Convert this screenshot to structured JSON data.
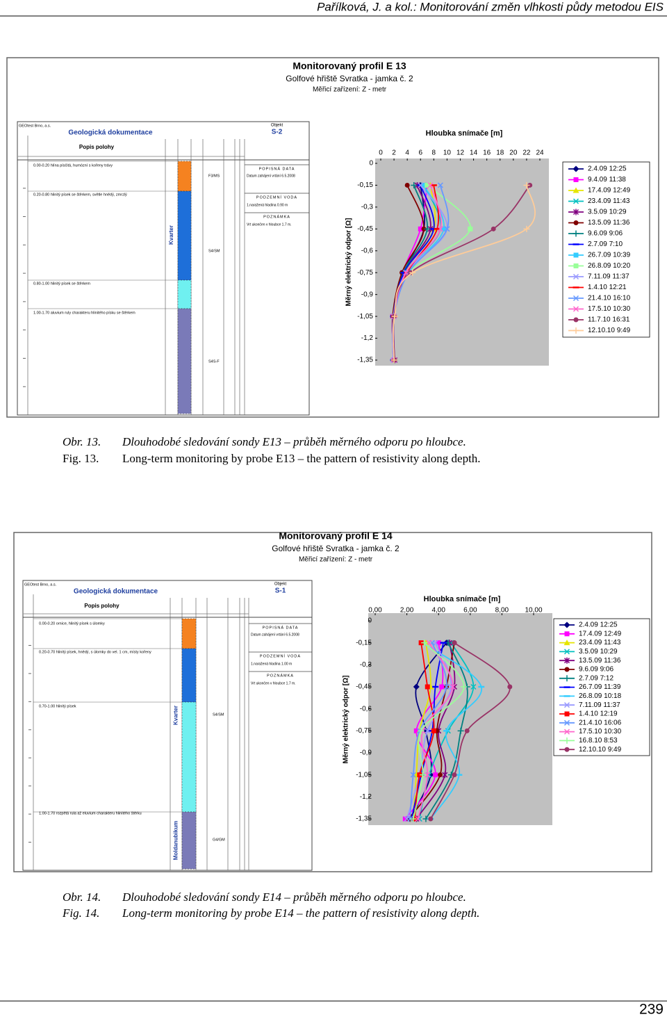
{
  "header": "Pařílková, J. a kol.: Monitorování změn vlhkosti půdy metodou EIS",
  "page_number": "239",
  "figures": [
    {
      "title": "Monitorovaný profil E 13",
      "subtitle": "Golfové hřiště Svratka - jamka č. 2",
      "device": "Měřicí zařízení: Z - metr",
      "log": {
        "company": "GEOtest Brno, a.s.",
        "heading": "Geologická dokumentace",
        "column": "Popis polohy",
        "object_label": "Objekt",
        "object": "S-2",
        "panel": [
          "POPISNÁ DATA",
          "Datum zahájení vrtání  6.5.2008",
          "PODZEMNÍ VODA",
          "1.naražená hladina  0.90 m",
          "POZNÁMKA",
          "Vrt ukončen v hloubce 1.7 m."
        ],
        "layers": [
          "0.00-0.20 hlína písčitá, humózní s kořeny trávy",
          "0.20-0.80 hlinitý písek se štěrkem, světle hnědý, zmrzlý",
          "0.80-1.00 hlinitý písek se štěrkem",
          "1.00-1.70 aluvium ruly charakteru hlinitého písku se štěrkem"
        ],
        "symbols": [
          "F3/MS",
          "S4/SM",
          "S4S-F"
        ],
        "strata": [
          "Kvarter"
        ]
      },
      "caption": [
        {
          "label": "Obr. 13.",
          "text": "Dlouhodobé sledování sondy E13 – průběh měrného odporu po hloubce."
        },
        {
          "label": "Fig. 13.",
          "text": "Long-term monitoring by probe E13 – the pattern of resistivity along depth."
        }
      ]
    },
    {
      "title": "Monitorovaný profil E 14",
      "subtitle": "Golfové hřiště Svratka - jamka č. 2",
      "device": "Měřicí zařízení: Z - metr",
      "log": {
        "company": "GEOtest Brno, a.s.",
        "heading": "Geologická dokumentace",
        "column": "Popis polohy",
        "object_label": "Objekt",
        "object": "S-1",
        "panel": [
          "POPISNÁ DATA",
          "Datum zahájení vrtání  6.5.2008",
          "PODZEMNÍ VODA",
          "1.naražená hladina  1.00 m",
          "POZNÁMKA",
          "Vrt ukončen v hloubce 1.7 m."
        ],
        "layers": [
          "0.00-0.20 ornice, hlinitý písek s úlomky",
          "0.20-0.70 hlinitý písek, hnědý, s úlomky do vel. 1 cm, místy kořeny",
          "0.70-1.00 hlinitý písek",
          "1.00-1.70 rozpětá rula až eluvium charakteru hlinitého štěrku"
        ],
        "symbols": [
          "S4/SM",
          "G4/GM"
        ],
        "strata": [
          "Kvarter",
          "Moldanubikum"
        ]
      },
      "caption": [
        {
          "label": "Obr. 14.",
          "text": "Dlouhodobé sledování sondy E14 – průběh měrného odporu po hloubce."
        },
        {
          "label": "Fig. 14.",
          "text": "Long-term monitoring by probe E14 – the pattern of resistivity along depth."
        }
      ]
    }
  ],
  "chart_data": [
    {
      "type": "line",
      "title": "Hloubka snímače [m]",
      "y_label": "Měrný elektrický odpor [Ω]",
      "depths": [
        -0.15,
        -0.45,
        -0.75,
        -1.05,
        -1.35
      ],
      "xlim": [
        0,
        24
      ],
      "xticks": [
        0,
        2,
        4,
        6,
        8,
        10,
        12,
        14,
        16,
        18,
        20,
        22,
        24
      ],
      "ylim": [
        -1.35,
        0
      ],
      "yticks": [
        0,
        {
          "value": -0.15,
          "label": "-0,15"
        },
        {
          "value": -0.3,
          "label": "-0,3"
        },
        {
          "value": -0.45,
          "label": "-0,45"
        },
        {
          "value": -0.6,
          "label": "-0,6"
        },
        {
          "value": -0.75,
          "label": "-0,75"
        },
        {
          "value": -0.9,
          "label": "-0,9"
        },
        {
          "value": -1.05,
          "label": "-1,05"
        },
        {
          "value": -1.2,
          "label": "-1,2"
        },
        {
          "value": -1.35,
          "label": "-1,35"
        }
      ],
      "series": [
        {
          "name": "2.4.09 12:25",
          "color": "#000080",
          "marker": "diamond",
          "values": [
            6,
            6.5,
            3.5,
            2,
            2
          ]
        },
        {
          "name": "9.4.09 11:38",
          "color": "#ff00ff",
          "marker": "square",
          "values": [
            7,
            6,
            3.3,
            1.8,
            2
          ]
        },
        {
          "name": "17.4.09 12:49",
          "color": "#e6e600",
          "marker": "triangle",
          "values": [
            7.5,
            8,
            3.6,
            1.9,
            2
          ]
        },
        {
          "name": "23.4.09 11:43",
          "color": "#00c0c0",
          "marker": "x",
          "values": [
            6.5,
            9,
            3.8,
            2,
            2
          ]
        },
        {
          "name": "3.5.09 10:29",
          "color": "#800080",
          "marker": "star",
          "values": [
            5.5,
            7.5,
            3.5,
            2,
            2.1
          ]
        },
        {
          "name": "13.5.09 11:36",
          "color": "#800000",
          "marker": "circle",
          "values": [
            4,
            6.5,
            3.2,
            1.8,
            2
          ]
        },
        {
          "name": "9.6.09 9:06",
          "color": "#008080",
          "marker": "plus",
          "values": [
            5,
            7,
            3.4,
            1.9,
            2
          ]
        },
        {
          "name": "2.7.09 7:10",
          "color": "#0000ff",
          "marker": "dash",
          "values": [
            6,
            8,
            3.5,
            1.9,
            1.9
          ]
        },
        {
          "name": "26.7.09 10:39",
          "color": "#33ccff",
          "marker": "square",
          "values": [
            6.5,
            9.5,
            4,
            2,
            2
          ]
        },
        {
          "name": "26.8.09 10:20",
          "color": "#99ff99",
          "marker": "square",
          "values": [
            7,
            13.5,
            4.2,
            2,
            2
          ]
        },
        {
          "name": "7.11.09 11:37",
          "color": "#9999ff",
          "marker": "x",
          "values": [
            6,
            10,
            3.8,
            1.9,
            1.9
          ]
        },
        {
          "name": "1.4.10 12:21",
          "color": "#ff0000",
          "marker": "dash",
          "values": [
            8,
            8.5,
            4,
            2,
            2
          ]
        },
        {
          "name": "21.4.10 16:10",
          "color": "#6699ff",
          "marker": "x",
          "values": [
            9,
            10,
            4.2,
            2,
            2
          ]
        },
        {
          "name": "17.5.10 10:30",
          "color": "#ff66cc",
          "marker": "x",
          "values": [
            7.5,
            9,
            3.8,
            2,
            2
          ]
        },
        {
          "name": "11.7.10 16:31",
          "color": "#993366",
          "marker": "circle",
          "values": [
            22.5,
            17,
            4.5,
            2,
            2.1
          ]
        },
        {
          "name": "12.10.10 9:49",
          "color": "#ffcc99",
          "marker": "plus",
          "values": [
            22,
            22,
            4.8,
            2.1,
            2
          ]
        }
      ]
    },
    {
      "type": "line",
      "title": "Hloubka snímače [m]",
      "y_label": "Měrný elektrický odpor [Ω]",
      "depths": [
        -0.15,
        -0.45,
        -0.75,
        -1.05,
        -1.35
      ],
      "xlim": [
        0,
        10
      ],
      "xticks": [
        {
          "value": 0,
          "label": "0,00"
        },
        {
          "value": 2,
          "label": "2,00"
        },
        {
          "value": 4,
          "label": "4,00"
        },
        {
          "value": 6,
          "label": "6,00"
        },
        {
          "value": 8,
          "label": "8,00"
        },
        {
          "value": 10,
          "label": "10,00"
        }
      ],
      "ylim": [
        -1.35,
        0
      ],
      "yticks": [
        0,
        {
          "value": -0.15,
          "label": "-0,15"
        },
        {
          "value": -0.3,
          "label": "-0,3"
        },
        {
          "value": -0.45,
          "label": "-0,45"
        },
        {
          "value": -0.6,
          "label": "-0,6"
        },
        {
          "value": -0.75,
          "label": "-0,75"
        },
        {
          "value": -0.9,
          "label": "-0,9"
        },
        {
          "value": -1.05,
          "label": "-1,05"
        },
        {
          "value": -1.2,
          "label": "-1,2"
        },
        {
          "value": -1.35,
          "label": "-1,35"
        }
      ],
      "series": [
        {
          "name": "2.4.09 12:25",
          "color": "#000080",
          "marker": "diamond",
          "values": [
            4.5,
            2.6,
            3.2,
            3.5,
            2.2
          ]
        },
        {
          "name": "17.4.09 12:49",
          "color": "#ff00ff",
          "marker": "square",
          "values": [
            4,
            4.2,
            2.6,
            3.8,
            1.9
          ]
        },
        {
          "name": "23.4.09 11:43",
          "color": "#e6e600",
          "marker": "triangle",
          "values": [
            3.2,
            3.5,
            2.8,
            2.6,
            2.4
          ]
        },
        {
          "name": "3.5.09 10:29",
          "color": "#00c0c0",
          "marker": "x",
          "values": [
            4.8,
            6.2,
            4.6,
            3.4,
            2.8
          ]
        },
        {
          "name": "13.5.09 11:36",
          "color": "#800080",
          "marker": "star",
          "values": [
            4.7,
            5,
            4,
            4.4,
            2.6
          ]
        },
        {
          "name": "9.6.09 9:06",
          "color": "#800000",
          "marker": "circle",
          "values": [
            5,
            4.5,
            3.9,
            4.1,
            2.1
          ]
        },
        {
          "name": "2.7.09 7:12",
          "color": "#008080",
          "marker": "plus",
          "values": [
            4.6,
            5.8,
            5.4,
            4.8,
            3.2
          ]
        },
        {
          "name": "26.7.09 11:39",
          "color": "#0000ff",
          "marker": "dash",
          "values": [
            4.3,
            3.8,
            3.6,
            2.9,
            2.3
          ]
        },
        {
          "name": "26.8.09 10:18",
          "color": "#33ccff",
          "marker": "dash",
          "values": [
            3,
            6.7,
            4.5,
            5.3,
            3.5
          ]
        },
        {
          "name": "7.11.09 11:37",
          "color": "#9999ff",
          "marker": "x",
          "values": [
            3.8,
            4.8,
            3.3,
            2.8,
            2
          ]
        },
        {
          "name": "1.4.10 12:19",
          "color": "#ff0000",
          "marker": "square",
          "values": [
            2.9,
            3.3,
            3.7,
            2.8,
            2.5
          ]
        },
        {
          "name": "21.4.10 16:06",
          "color": "#6699ff",
          "marker": "x",
          "values": [
            3.6,
            4.5,
            2.8,
            2.4,
            2.2
          ]
        },
        {
          "name": "17.5.10 10:30",
          "color": "#ff66cc",
          "marker": "x",
          "values": [
            3.4,
            4.9,
            3,
            3.3,
            2.7
          ]
        },
        {
          "name": "16.8.10 8:53",
          "color": "#99ff99",
          "marker": "plus",
          "values": [
            3.1,
            5.6,
            2.9,
            3,
            2.4
          ]
        },
        {
          "name": "12.10.10 9:49",
          "color": "#993366",
          "marker": "circle",
          "values": [
            5,
            8.5,
            5.8,
            5,
            3.5
          ]
        }
      ]
    }
  ]
}
